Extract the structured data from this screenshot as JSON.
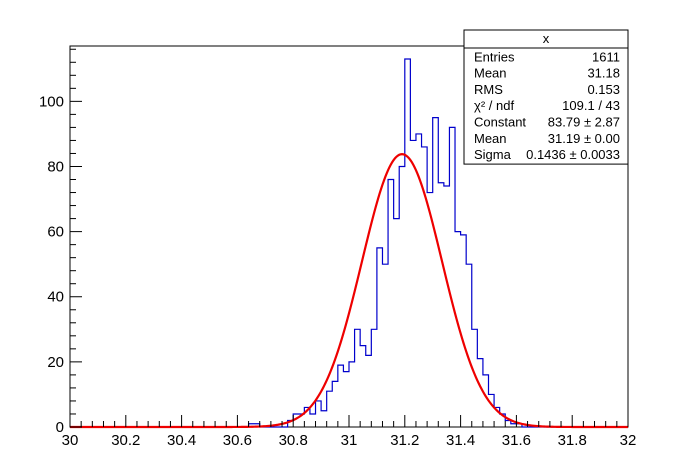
{
  "chart_data": {
    "type": "histogram",
    "title": "",
    "xlabel": "",
    "ylabel": "",
    "xlim": [
      30,
      32
    ],
    "ylim": [
      0,
      117
    ],
    "grid": false,
    "bin_width": 0.02,
    "x_ticks": [
      "30",
      "30.2",
      "30.4",
      "30.6",
      "30.8",
      "31",
      "31.2",
      "31.4",
      "31.6",
      "31.8",
      "32"
    ],
    "y_ticks": [
      "0",
      "20",
      "40",
      "60",
      "80",
      "100"
    ],
    "histogram": {
      "color": "#0000cc",
      "bin_edges_start": 30.0,
      "counts": [
        0,
        0,
        0,
        0,
        0,
        0,
        0,
        0,
        0,
        0,
        0,
        0,
        0,
        0,
        0,
        0,
        0,
        0,
        0,
        0,
        0,
        0,
        0,
        0,
        0,
        0,
        0,
        0,
        0,
        0,
        0,
        0,
        1,
        1,
        0,
        0,
        0,
        0,
        0,
        2,
        4,
        4,
        6,
        4,
        8,
        5,
        11,
        14,
        19,
        17,
        20,
        30,
        25,
        22,
        30,
        55,
        50,
        76,
        64,
        80,
        113,
        88,
        90,
        86,
        72,
        95,
        75,
        74,
        92,
        60,
        59,
        50,
        30,
        21,
        16,
        10,
        6,
        4,
        2,
        1,
        1,
        0,
        0,
        0,
        0,
        0,
        0,
        0,
        0,
        0,
        0,
        0,
        0,
        0,
        0,
        0,
        0,
        0,
        0,
        0
      ]
    },
    "fit": {
      "function": "gaus",
      "color": "#ee0000",
      "constant": 83.79,
      "mean": 31.19,
      "sigma": 0.1436
    },
    "stats_box": {
      "title": "x",
      "rows": [
        {
          "label": "Entries",
          "value": "1611"
        },
        {
          "label": "Mean",
          "value": "31.18"
        },
        {
          "label": "RMS",
          "value": "0.153"
        },
        {
          "label": "χ² / ndf",
          "value": "109.1 / 43"
        },
        {
          "label": "Constant",
          "value": "83.79 ± 2.87"
        },
        {
          "label": "Mean",
          "value": "31.19 ± 0.00"
        },
        {
          "label": "Sigma",
          "value": "0.1436 ± 0.0033"
        }
      ]
    }
  }
}
